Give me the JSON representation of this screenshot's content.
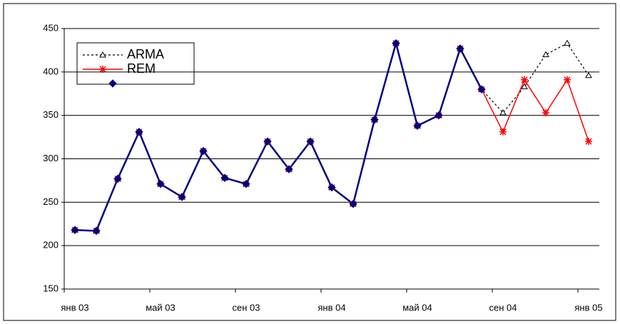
{
  "chart_data": {
    "type": "line",
    "categories": [
      "янв 03",
      null,
      null,
      null,
      "май 03",
      null,
      null,
      null,
      "сен 03",
      null,
      null,
      null,
      "янв 04",
      null,
      null,
      null,
      "май 04",
      null,
      null,
      null,
      "сен 04",
      null,
      null,
      null,
      "янв 05"
    ],
    "series": [
      {
        "name": "ARMA",
        "color": "#000000",
        "values": [
          218,
          217,
          277,
          331,
          271,
          256,
          309,
          278,
          271,
          320,
          288,
          320,
          267,
          248,
          345,
          433,
          338,
          350,
          427,
          380,
          353,
          383,
          420,
          433,
          396
        ]
      },
      {
        "name": "REM",
        "color": "#ff0000",
        "values": [
          218,
          217,
          277,
          331,
          271,
          256,
          309,
          278,
          271,
          320,
          288,
          320,
          267,
          248,
          345,
          433,
          338,
          350,
          427,
          380,
          331,
          391,
          353,
          391,
          320
        ]
      },
      {
        "color": "#000080",
        "values": [
          218,
          217,
          277,
          331,
          271,
          256,
          309,
          278,
          271,
          320,
          288,
          320,
          267,
          248,
          345,
          433,
          338,
          350,
          427,
          380,
          null,
          null,
          null,
          null,
          null
        ]
      }
    ],
    "ylim": [
      150,
      450
    ],
    "yticks": [
      150,
      200,
      250,
      300,
      350,
      400,
      450
    ],
    "grid": true
  }
}
